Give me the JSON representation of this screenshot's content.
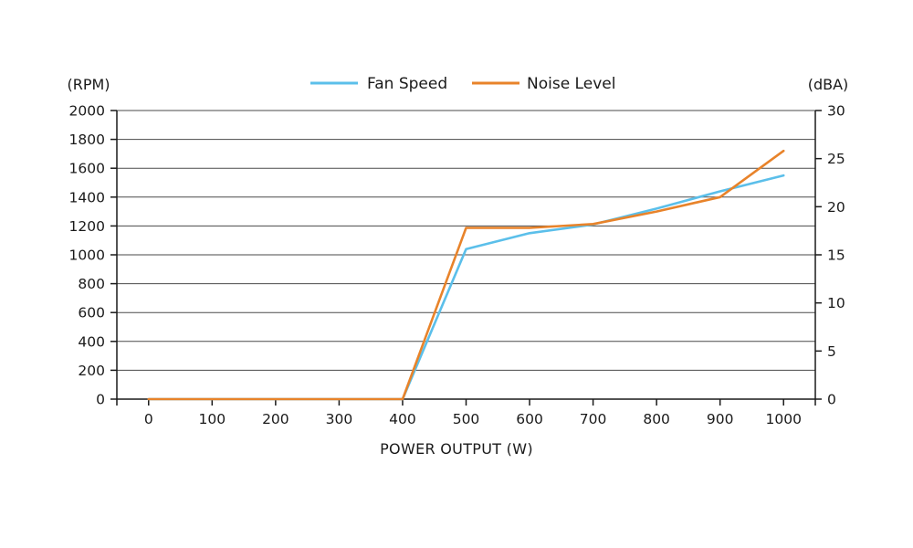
{
  "chart_data": {
    "type": "line",
    "title": "",
    "xlabel": "POWER OUTPUT (W)",
    "y_left_unit": "(RPM)",
    "y_right_unit": "(dBA)",
    "x_ticks": [
      0,
      100,
      200,
      300,
      400,
      500,
      600,
      700,
      800,
      900,
      1000
    ],
    "y_left_ticks": [
      0,
      200,
      400,
      600,
      800,
      1000,
      1200,
      1400,
      1600,
      1800,
      2000
    ],
    "y_right_ticks": [
      0,
      5,
      10,
      15,
      20,
      25,
      30
    ],
    "xlim": [
      -50,
      1050
    ],
    "ylim_left": [
      0,
      2000
    ],
    "ylim_right": [
      0,
      30
    ],
    "grid": true,
    "legend_position": "top-center",
    "series": [
      {
        "name": "Fan Speed",
        "axis": "left",
        "color": "#5bbfea",
        "x": [
          0,
          100,
          200,
          300,
          400,
          500,
          600,
          700,
          800,
          900,
          1000
        ],
        "values": [
          0,
          0,
          0,
          0,
          0,
          1040,
          1150,
          1210,
          1320,
          1440,
          1550
        ]
      },
      {
        "name": "Noise Level",
        "axis": "right",
        "color": "#e8832a",
        "x": [
          0,
          100,
          200,
          300,
          400,
          500,
          600,
          700,
          800,
          900,
          1000
        ],
        "values": [
          0,
          0,
          0,
          0,
          0,
          17.8,
          17.8,
          18.2,
          19.5,
          21.0,
          25.8
        ]
      }
    ]
  }
}
